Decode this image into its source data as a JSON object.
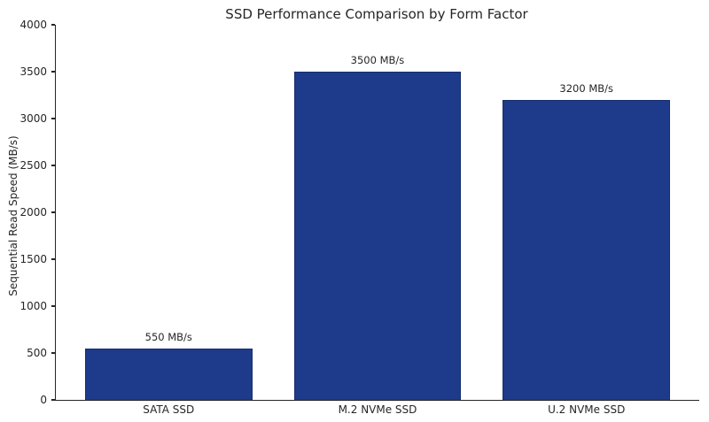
{
  "chart_data": {
    "type": "bar",
    "title": "SSD Performance Comparison by Form Factor",
    "categories": [
      "SATA SSD",
      "M.2 NVMe SSD",
      "U.2 NVMe SSD"
    ],
    "values": [
      550,
      3500,
      3200
    ],
    "value_labels": [
      "550 MB/s",
      "3500 MB/s",
      "3200 MB/s"
    ],
    "xlabel": "",
    "ylabel": "Sequential Read Speed (MB/s)",
    "ylim": [
      0,
      4000
    ],
    "yticks": [
      0,
      500,
      1000,
      1500,
      2000,
      2500,
      3000,
      3500,
      4000
    ],
    "grid": false,
    "legend": null,
    "colors": {
      "bar_fill": "#1e3a8a",
      "bar_edge": "#172e6e",
      "axis": "#262626",
      "text": "#262626",
      "background": "#ffffff"
    }
  }
}
